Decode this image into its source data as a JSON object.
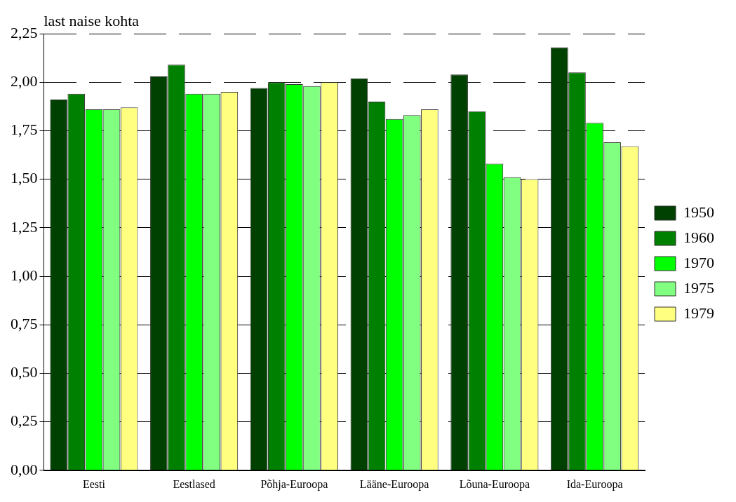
{
  "chart_data": {
    "type": "bar",
    "ylabel": "last naise kohta",
    "categories": [
      "Eesti",
      "Eestlased",
      "Põhja-Euroopa",
      "Lääne-Euroopa",
      "Lõuna-Euroopa",
      "Ida-Euroopa"
    ],
    "series": [
      {
        "name": "1950",
        "color": "#004000",
        "values": [
          1.91,
          2.03,
          1.97,
          2.02,
          2.04,
          2.18
        ]
      },
      {
        "name": "1960",
        "color": "#008000",
        "values": [
          1.94,
          2.09,
          2.0,
          1.9,
          1.85,
          2.05
        ]
      },
      {
        "name": "1970",
        "color": "#00ff00",
        "values": [
          1.86,
          1.94,
          1.99,
          1.81,
          1.58,
          1.79
        ]
      },
      {
        "name": "1975",
        "color": "#80ff80",
        "values": [
          1.86,
          1.94,
          1.98,
          1.83,
          1.51,
          1.69
        ]
      },
      {
        "name": "1979",
        "color": "#ffff80",
        "values": [
          1.87,
          1.95,
          2.0,
          1.86,
          1.5,
          1.67
        ]
      }
    ],
    "ylim": [
      0,
      2.25
    ],
    "yticks": [
      {
        "value": 0,
        "label": "0,00"
      },
      {
        "value": 0.25,
        "label": "0,25"
      },
      {
        "value": 0.5,
        "label": "0,50"
      },
      {
        "value": 0.75,
        "label": "0,75"
      },
      {
        "value": 1,
        "label": "1,00"
      },
      {
        "value": 1.25,
        "label": "1,25"
      },
      {
        "value": 1.5,
        "label": "1,50"
      },
      {
        "value": 1.75,
        "label": "1,75"
      },
      {
        "value": 2,
        "label": "2,00"
      },
      {
        "value": 2.25,
        "label": "2,25"
      }
    ],
    "grid": "y",
    "legend": "right"
  }
}
